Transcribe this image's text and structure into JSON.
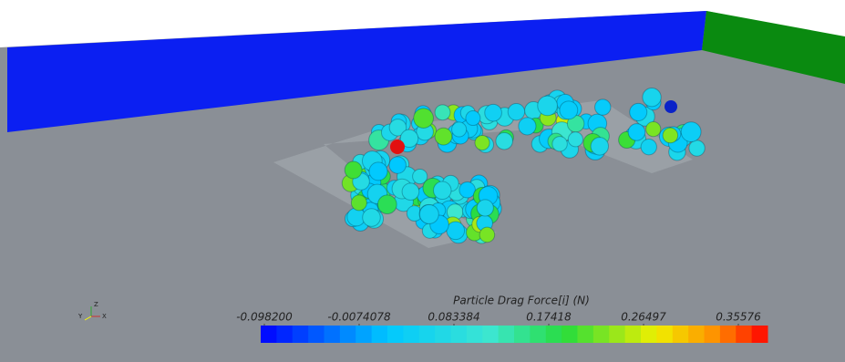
{
  "legend": {
    "title": "Particle Drag Force[i] (N)",
    "range": [
      -0.0982,
      0.35576
    ],
    "ticks": [
      {
        "value": -0.0982,
        "label": "-0.098200"
      },
      -0.0074078,
      0.083384,
      0.17418,
      0.26497,
      0.35576
    ]
  },
  "axes_triad": {
    "x": "X",
    "y": "Y",
    "z": "Z"
  }
}
